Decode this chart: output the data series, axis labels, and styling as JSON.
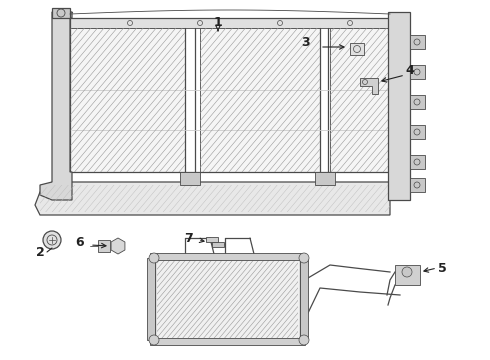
{
  "bg_color": "#ffffff",
  "line_color": "#4a4a4a",
  "callout_color": "#222222",
  "figsize": [
    4.9,
    3.6
  ],
  "dpi": 100
}
